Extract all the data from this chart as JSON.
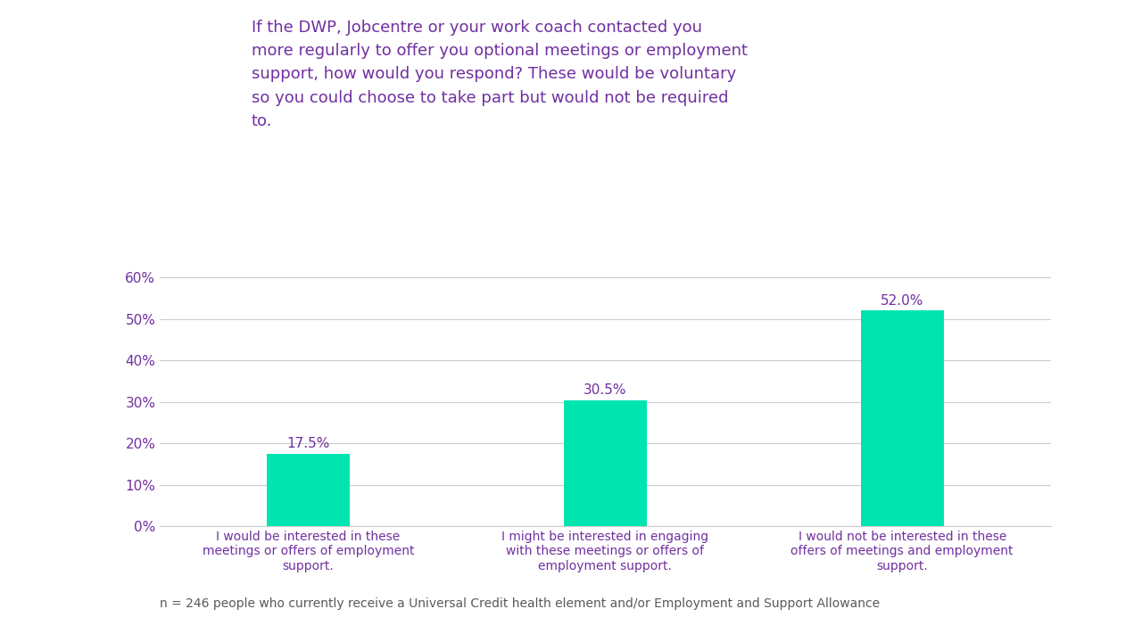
{
  "title": "If the DWP, Jobcentre or your work coach contacted you\nmore regularly to offer you optional meetings or employment\nsupport, how would you respond? These would be voluntary\nso you could choose to take part but would not be required\nto.",
  "categories": [
    "I would be interested in these\nmeetings or offers of employment\nsupport.",
    "I might be interested in engaging\nwith these meetings or offers of\nemployment support.",
    "I would not be interested in these\noffers of meetings and employment\nsupport."
  ],
  "values": [
    17.5,
    30.5,
    52.0
  ],
  "bar_color": "#00e5b0",
  "title_color": "#7030a0",
  "tick_label_color": "#7030a0",
  "value_label_color": "#7030a0",
  "cat_label_color": "#7030a0",
  "footnote_color": "#595959",
  "grid_color": "#cccccc",
  "background_color": "#ffffff",
  "ylim": [
    0,
    65
  ],
  "yticks": [
    0,
    10,
    20,
    30,
    40,
    50,
    60
  ],
  "ytick_labels": [
    "0%",
    "10%",
    "20%",
    "30%",
    "40%",
    "50%",
    "60%"
  ],
  "footnote": "n = 246 people who currently receive a Universal Credit health element and/or Employment and Support Allowance",
  "title_fontsize": 13,
  "tick_fontsize": 11,
  "value_fontsize": 11,
  "footnote_fontsize": 10,
  "cat_fontsize": 10,
  "bar_width": 0.28
}
